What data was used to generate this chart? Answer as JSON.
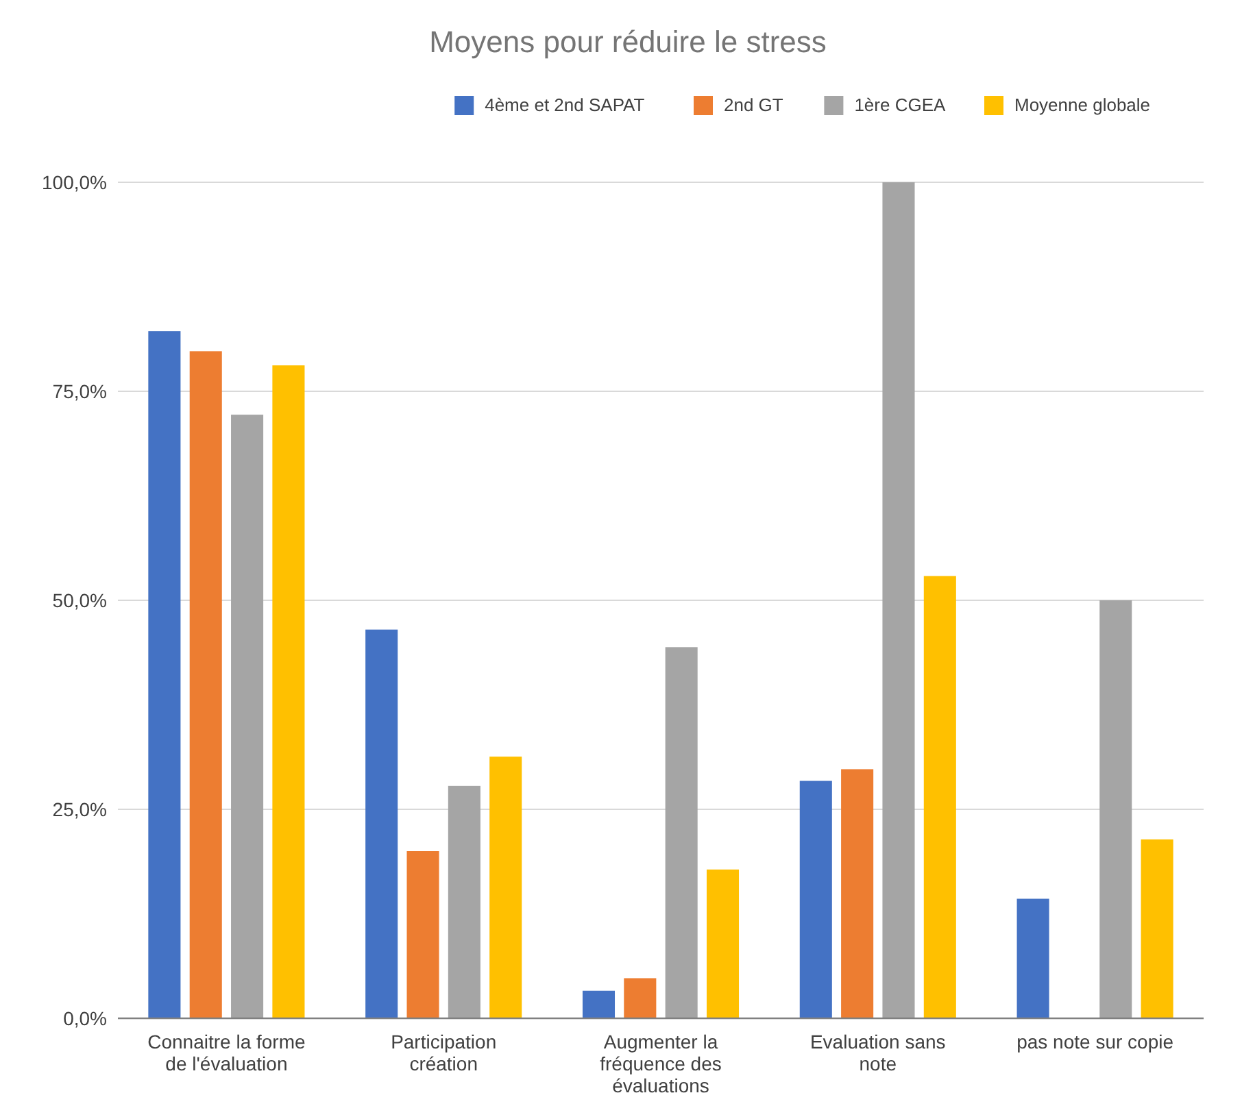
{
  "chart_data": {
    "type": "bar",
    "title": "Moyens pour réduire le stress",
    "categories": [
      "Connaitre la forme de l'évaluation",
      "Participation création",
      "Augmenter la fréquence des évaluations",
      "Evaluation sans note",
      "pas note sur copie"
    ],
    "series": [
      {
        "name": "4ème et 2nd SAPAT",
        "color": "#4472c4",
        "values": [
          82.2,
          46.5,
          3.3,
          28.4,
          14.3
        ]
      },
      {
        "name": "2nd GT",
        "color": "#ed7d31",
        "values": [
          79.8,
          20,
          4.8,
          29.8,
          null
        ]
      },
      {
        "name": "1ère CGEA",
        "color": "#a5a5a5",
        "values": [
          72.2,
          27.8,
          44.4,
          100,
          50
        ]
      },
      {
        "name": "Moyenne globale",
        "color": "#ffc000",
        "values": [
          78.1,
          31.3,
          17.8,
          52.9,
          21.4
        ]
      }
    ],
    "ylim": [
      0,
      100
    ],
    "yticks": [
      {
        "value": 0,
        "label": "0,0%"
      },
      {
        "value": 25,
        "label": "25,0%"
      },
      {
        "value": 50,
        "label": "50,0%"
      },
      {
        "value": 75,
        "label": "75,0%"
      },
      {
        "value": 100,
        "label": "100,0%"
      }
    ],
    "grid": "y",
    "legend": "top right"
  }
}
